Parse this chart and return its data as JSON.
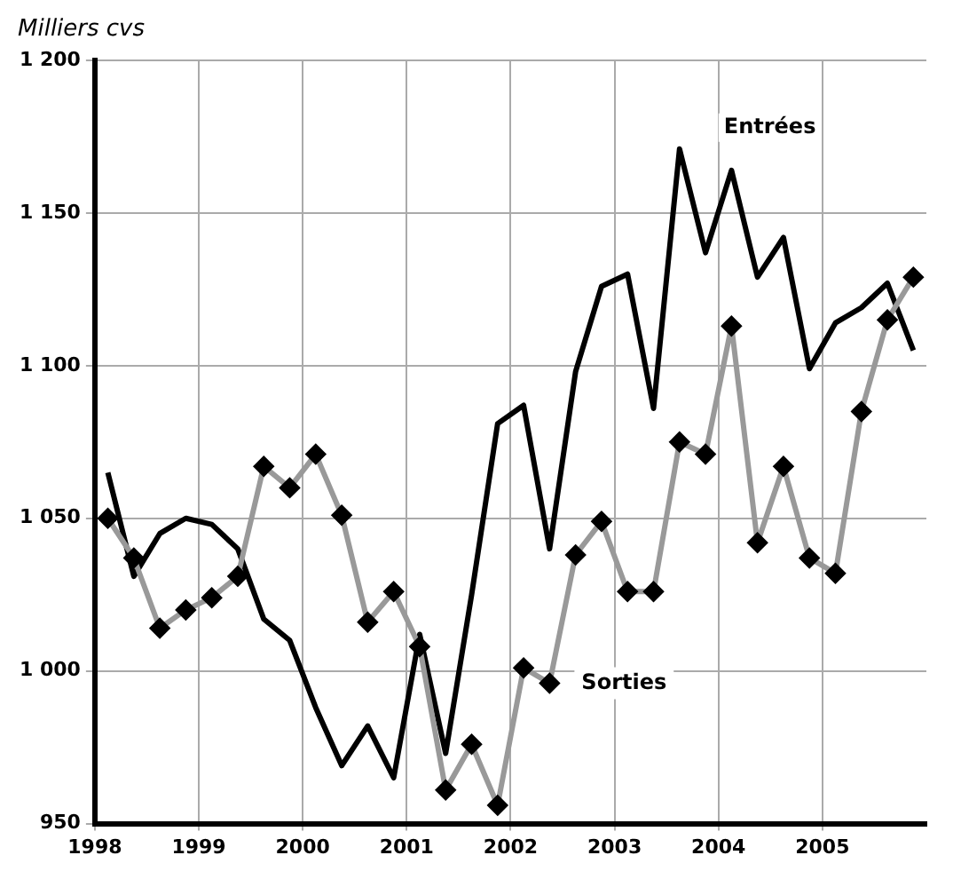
{
  "chart_data": {
    "type": "line",
    "ylabel": "Milliers cvs",
    "x": [
      1998.125,
      1998.375,
      1998.625,
      1998.875,
      1999.125,
      1999.375,
      1999.625,
      1999.875,
      2000.125,
      2000.375,
      2000.625,
      2000.875,
      2001.125,
      2001.375,
      2001.625,
      2001.875,
      2002.125,
      2002.375,
      2002.625,
      2002.875,
      2003.125,
      2003.375,
      2003.625,
      2003.875,
      2004.125,
      2004.375,
      2004.625,
      2004.875,
      2005.125,
      2005.375,
      2005.625,
      2005.875
    ],
    "series": [
      {
        "name": "Entrées",
        "color": "#000000",
        "marker": "none",
        "values": [
          1065,
          1031,
          1045,
          1050,
          1048,
          1040,
          1017,
          1010,
          988,
          969,
          982,
          965,
          1012,
          973,
          1025,
          1081,
          1087,
          1040,
          1098,
          1126,
          1130,
          1086,
          1171,
          1137,
          1164,
          1129,
          1142,
          1099,
          1114,
          1119,
          1127,
          1105
        ]
      },
      {
        "name": "Sorties",
        "color": "#999999",
        "marker": "diamond",
        "values": [
          1050,
          1037,
          1014,
          1020,
          1024,
          1031,
          1067,
          1060,
          1071,
          1051,
          1016,
          1026,
          1008,
          961,
          976,
          956,
          1001,
          996,
          1038,
          1049,
          1026,
          1026,
          1075,
          1071,
          1113,
          1042,
          1067,
          1037,
          1032,
          1085,
          1115,
          1129
        ]
      }
    ],
    "xlim": [
      1998,
      2006
    ],
    "xticks": [
      1998,
      1999,
      2000,
      2001,
      2002,
      2003,
      2004,
      2005
    ],
    "ylim": [
      950,
      1200
    ],
    "yticks": [
      {
        "value": 950,
        "label": "950"
      },
      {
        "value": 1000,
        "label": "1 000"
      },
      {
        "value": 1050,
        "label": "1 050"
      },
      {
        "value": 1100,
        "label": "1 100"
      },
      {
        "value": 1150,
        "label": "1 150"
      },
      {
        "value": 1200,
        "label": "1 200"
      }
    ],
    "grid": true,
    "legend": false,
    "line_style": "solid"
  }
}
